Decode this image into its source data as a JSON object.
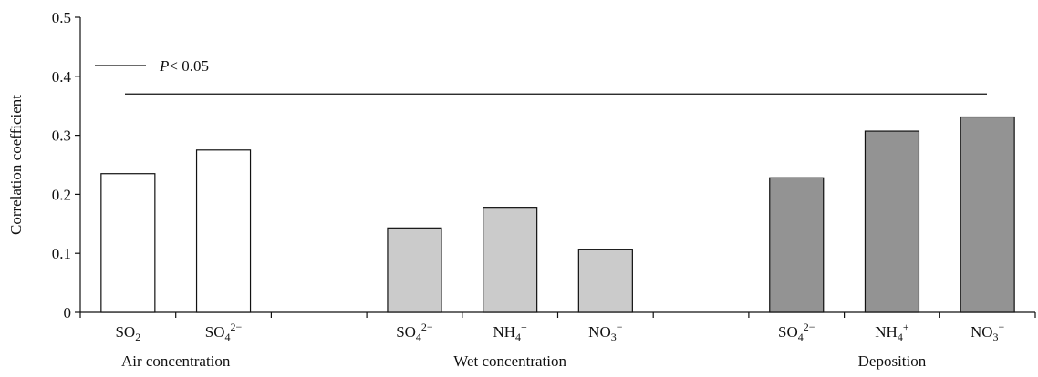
{
  "chart_data": {
    "type": "bar",
    "ylabel": "Correlation coefficient",
    "ylim": [
      0,
      0.5
    ],
    "yticks": [
      "0",
      "0.1",
      "0.2",
      "0.3",
      "0.4",
      "0.5"
    ],
    "reference_line": {
      "value": 0.37,
      "label_prefix": "P",
      "label_suffix": "< 0.05"
    },
    "bars": [
      {
        "group": "Air concentration",
        "base": "SO",
        "sub": "2",
        "sup": "",
        "value": 0.235,
        "color": "#ffffff"
      },
      {
        "group": "Air concentration",
        "base": "SO",
        "sub": "4",
        "sup": "2−",
        "value": 0.275,
        "color": "#ffffff"
      },
      {
        "group": "Wet concentration",
        "base": "SO",
        "sub": "4",
        "sup": "2−",
        "value": 0.143,
        "color": "#cbcbcb"
      },
      {
        "group": "Wet concentration",
        "base": "NH",
        "sub": "4",
        "sup": "+",
        "value": 0.178,
        "color": "#cbcbcb"
      },
      {
        "group": "Wet concentration",
        "base": "NO",
        "sub": "3",
        "sup": "−",
        "value": 0.107,
        "color": "#cbcbcb"
      },
      {
        "group": "Deposition",
        "base": "SO",
        "sub": "4",
        "sup": "2−",
        "value": 0.228,
        "color": "#939393"
      },
      {
        "group": "Deposition",
        "base": "NH",
        "sub": "4",
        "sup": "+",
        "value": 0.307,
        "color": "#939393"
      },
      {
        "group": "Deposition",
        "base": "NO",
        "sub": "3",
        "sup": "−",
        "value": 0.331,
        "color": "#939393"
      }
    ],
    "groups": [
      "Air concentration",
      "Wet concentration",
      "Deposition"
    ],
    "grid": false,
    "legend": "top-left"
  }
}
